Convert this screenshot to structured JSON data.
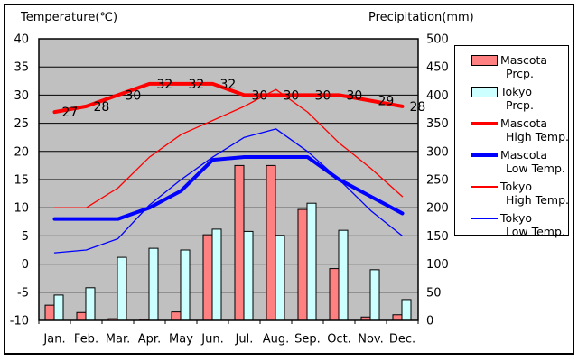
{
  "colors": {
    "plot_background": "#C0C0C0",
    "mascota_bar": "#FF8080",
    "tokyo_bar": "#CCFFFF",
    "high_temp_line": "#FF0000",
    "low_temp_line": "#0000FF",
    "axis_line": "#000000",
    "page_background": "#FFFFFF"
  },
  "chart_data": {
    "type": "bar",
    "subtype": "combo-bar-line-climate",
    "categories": [
      "Jan.",
      "Feb.",
      "Mar.",
      "Apr.",
      "May",
      "Jun.",
      "Jul.",
      "Aug.",
      "Sep.",
      "Oct.",
      "Nov.",
      "Dec."
    ],
    "left_axis": {
      "label": "Temperature(℃)",
      "min": -10,
      "max": 40,
      "ticks": [
        40,
        35,
        30,
        25,
        20,
        15,
        10,
        5,
        0,
        -5,
        -10
      ]
    },
    "right_axis": {
      "label": "Precipitation(mm)",
      "min": 0,
      "max": 500,
      "ticks": [
        500,
        450,
        400,
        350,
        300,
        250,
        200,
        150,
        100,
        50,
        0
      ]
    },
    "grid": "horizontal",
    "plot_bg": "#C0C0C0",
    "legend_position": "right",
    "bar_series": [
      {
        "name": "Mascota Prcp.",
        "color": "#FF8080",
        "axis": "right",
        "values": [
          27,
          14,
          3,
          2,
          15,
          152,
          275,
          275,
          197,
          92,
          6,
          10
        ]
      },
      {
        "name": "Tokyo Prcp.",
        "color": "#CCFFFF",
        "axis": "right",
        "values": [
          45,
          58,
          112,
          128,
          125,
          162,
          158,
          151,
          208,
          160,
          90,
          37
        ]
      }
    ],
    "line_series": [
      {
        "name": "Tokyo High Temp.",
        "color": "#FF0000",
        "width": 1.3,
        "axis": "left",
        "data_labels": false,
        "values": [
          10,
          10,
          13.5,
          19,
          23,
          25.5,
          28,
          31,
          27,
          21.5,
          17,
          12
        ]
      },
      {
        "name": "Tokyo Low Temp.",
        "color": "#0000FF",
        "width": 1.3,
        "axis": "left",
        "data_labels": false,
        "values": [
          2,
          2.5,
          4.5,
          10.5,
          15,
          19,
          22.5,
          24,
          20,
          15,
          9.5,
          5
        ]
      },
      {
        "name": "Mascota High Temp.",
        "color": "#FF0000",
        "width": 4,
        "axis": "left",
        "data_labels": true,
        "values": [
          27,
          28,
          30,
          32,
          32,
          32,
          30,
          30,
          30,
          30,
          29,
          28
        ]
      },
      {
        "name": "Mascota Low Temp.",
        "color": "#0000FF",
        "width": 4,
        "axis": "left",
        "data_labels": false,
        "values": [
          8,
          8,
          8,
          10,
          13,
          18.5,
          19,
          19,
          19,
          15,
          12,
          9
        ]
      }
    ]
  },
  "legend": {
    "items": [
      {
        "label1": "Mascota",
        "label2": "Prcp.",
        "swatch_class": "swatch bar-mascota"
      },
      {
        "label1": "Tokyo",
        "label2": "Prcp.",
        "swatch_class": "swatch bar-tokyo"
      },
      {
        "label1": "Mascota",
        "label2": "High Temp.",
        "swatch_class": "swatch line-thick-red"
      },
      {
        "label1": "Mascota",
        "label2": "Low Temp.",
        "swatch_class": "swatch line-thick-blue"
      },
      {
        "label1": "Tokyo",
        "label2": "High Temp.",
        "swatch_class": "swatch line-thin-red"
      },
      {
        "label1": "Tokyo",
        "label2": "Low Temp.",
        "swatch_class": "swatch line-thin-blue"
      }
    ]
  }
}
